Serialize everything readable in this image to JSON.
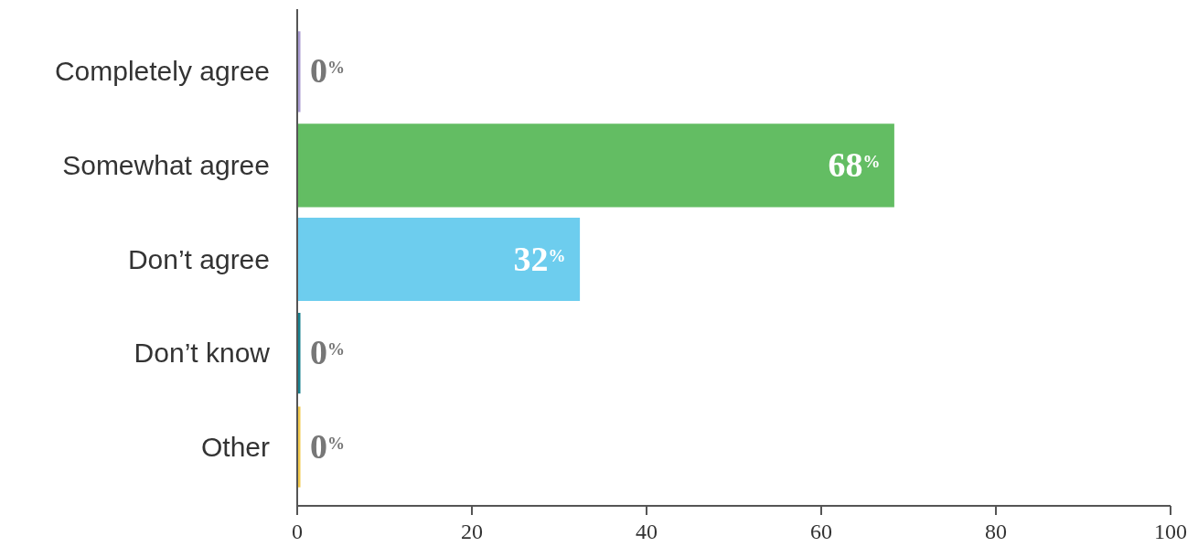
{
  "chart_data": {
    "type": "bar",
    "orientation": "horizontal",
    "categories": [
      "Completely agree",
      "Somewhat agree",
      "Don’t agree",
      "Don’t know",
      "Other"
    ],
    "values": [
      0,
      68,
      32,
      0,
      0
    ],
    "colors": [
      "#a99bd2",
      "#63bd63",
      "#6dcdee",
      "#17808e",
      "#f2c94c"
    ],
    "value_labels": [
      "0$^{%}$",
      "68$^{%}$",
      "32$^{%}$",
      "0$^{%}$",
      "0$^{%}$"
    ],
    "xlim": [
      0,
      100
    ],
    "xticks": [
      0,
      20,
      40,
      60,
      80,
      100
    ]
  }
}
